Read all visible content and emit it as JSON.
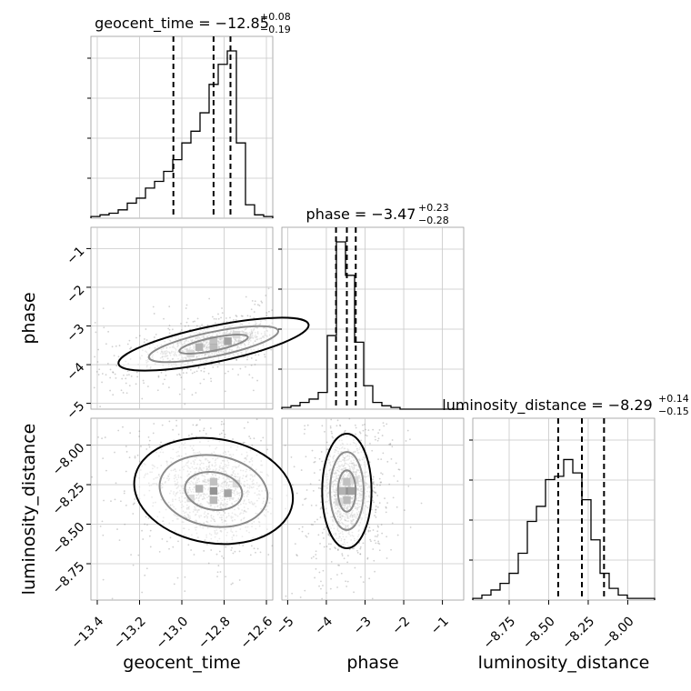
{
  "chart_data": {
    "type": "corner",
    "parameters": [
      {
        "name": "geocent_time",
        "label": "geocent_time",
        "title": "geocent_time = −12.85",
        "title_sup": "+0.08",
        "title_sub": "−0.19",
        "range": [
          -13.43,
          -12.57
        ],
        "ticks": [
          -13.4,
          -13.2,
          -13.0,
          -12.8,
          -12.6
        ],
        "tick_labels": [
          "−13.4",
          "−13.2",
          "−13.0",
          "−12.8",
          "−12.6"
        ],
        "quantiles": [
          -13.04,
          -12.85,
          -12.77
        ],
        "hist": [
          0.01,
          0.02,
          0.03,
          0.05,
          0.09,
          0.12,
          0.18,
          0.22,
          0.28,
          0.35,
          0.45,
          0.52,
          0.63,
          0.8,
          0.92,
          1.0,
          0.45,
          0.08,
          0.02,
          0.01
        ],
        "hist_max_count": 2400
      },
      {
        "name": "phase",
        "label": "phase",
        "title": "phase = −3.47",
        "title_sup": "+0.23",
        "title_sub": "−0.28",
        "range": [
          -5.15,
          -0.45
        ],
        "ticks": [
          -5,
          -4,
          -3,
          -2,
          -1
        ],
        "tick_labels": [
          "−5",
          "−4",
          "−3",
          "−2",
          "−1"
        ],
        "quantiles": [
          -3.75,
          -3.47,
          -3.24
        ],
        "hist": [
          0.01,
          0.02,
          0.04,
          0.06,
          0.1,
          0.44,
          1.0,
          0.8,
          0.4,
          0.14,
          0.04,
          0.02,
          0.01,
          0.0,
          0.0,
          0.0,
          0.0,
          0.0,
          0.0,
          0.0
        ],
        "hist_max_count": 4000
      },
      {
        "name": "luminosity_distance",
        "label": "luminosity_distance",
        "title": "luminosity_distance = −8.29",
        "title_sup": "+0.14",
        "title_sub": "−0.15",
        "range": [
          -8.98,
          -7.83
        ],
        "ticks": [
          -8.75,
          -8.5,
          -8.25,
          -8.0
        ],
        "tick_labels": [
          "−8.75",
          "−8.50",
          "−8.25",
          "−8.00"
        ],
        "quantiles": [
          -8.44,
          -8.29,
          -8.15
        ],
        "hist": [
          0.01,
          0.03,
          0.06,
          0.1,
          0.16,
          0.28,
          0.47,
          0.56,
          0.72,
          0.74,
          0.84,
          0.76,
          0.6,
          0.36,
          0.16,
          0.07,
          0.03,
          0.01,
          0.01,
          0.01
        ],
        "hist_max_count": 1000
      }
    ],
    "pairs": [
      {
        "x": "geocent_time",
        "y": "phase",
        "center": [
          -12.85,
          -3.47
        ],
        "correlation": 0.6
      },
      {
        "x": "geocent_time",
        "y": "luminosity_distance",
        "center": [
          -12.85,
          -8.29
        ],
        "correlation": -0.2
      },
      {
        "x": "phase",
        "y": "luminosity_distance",
        "center": [
          -3.47,
          -8.29
        ],
        "correlation": 0.0
      }
    ],
    "grid": true,
    "quantile_lines": "dashed"
  }
}
